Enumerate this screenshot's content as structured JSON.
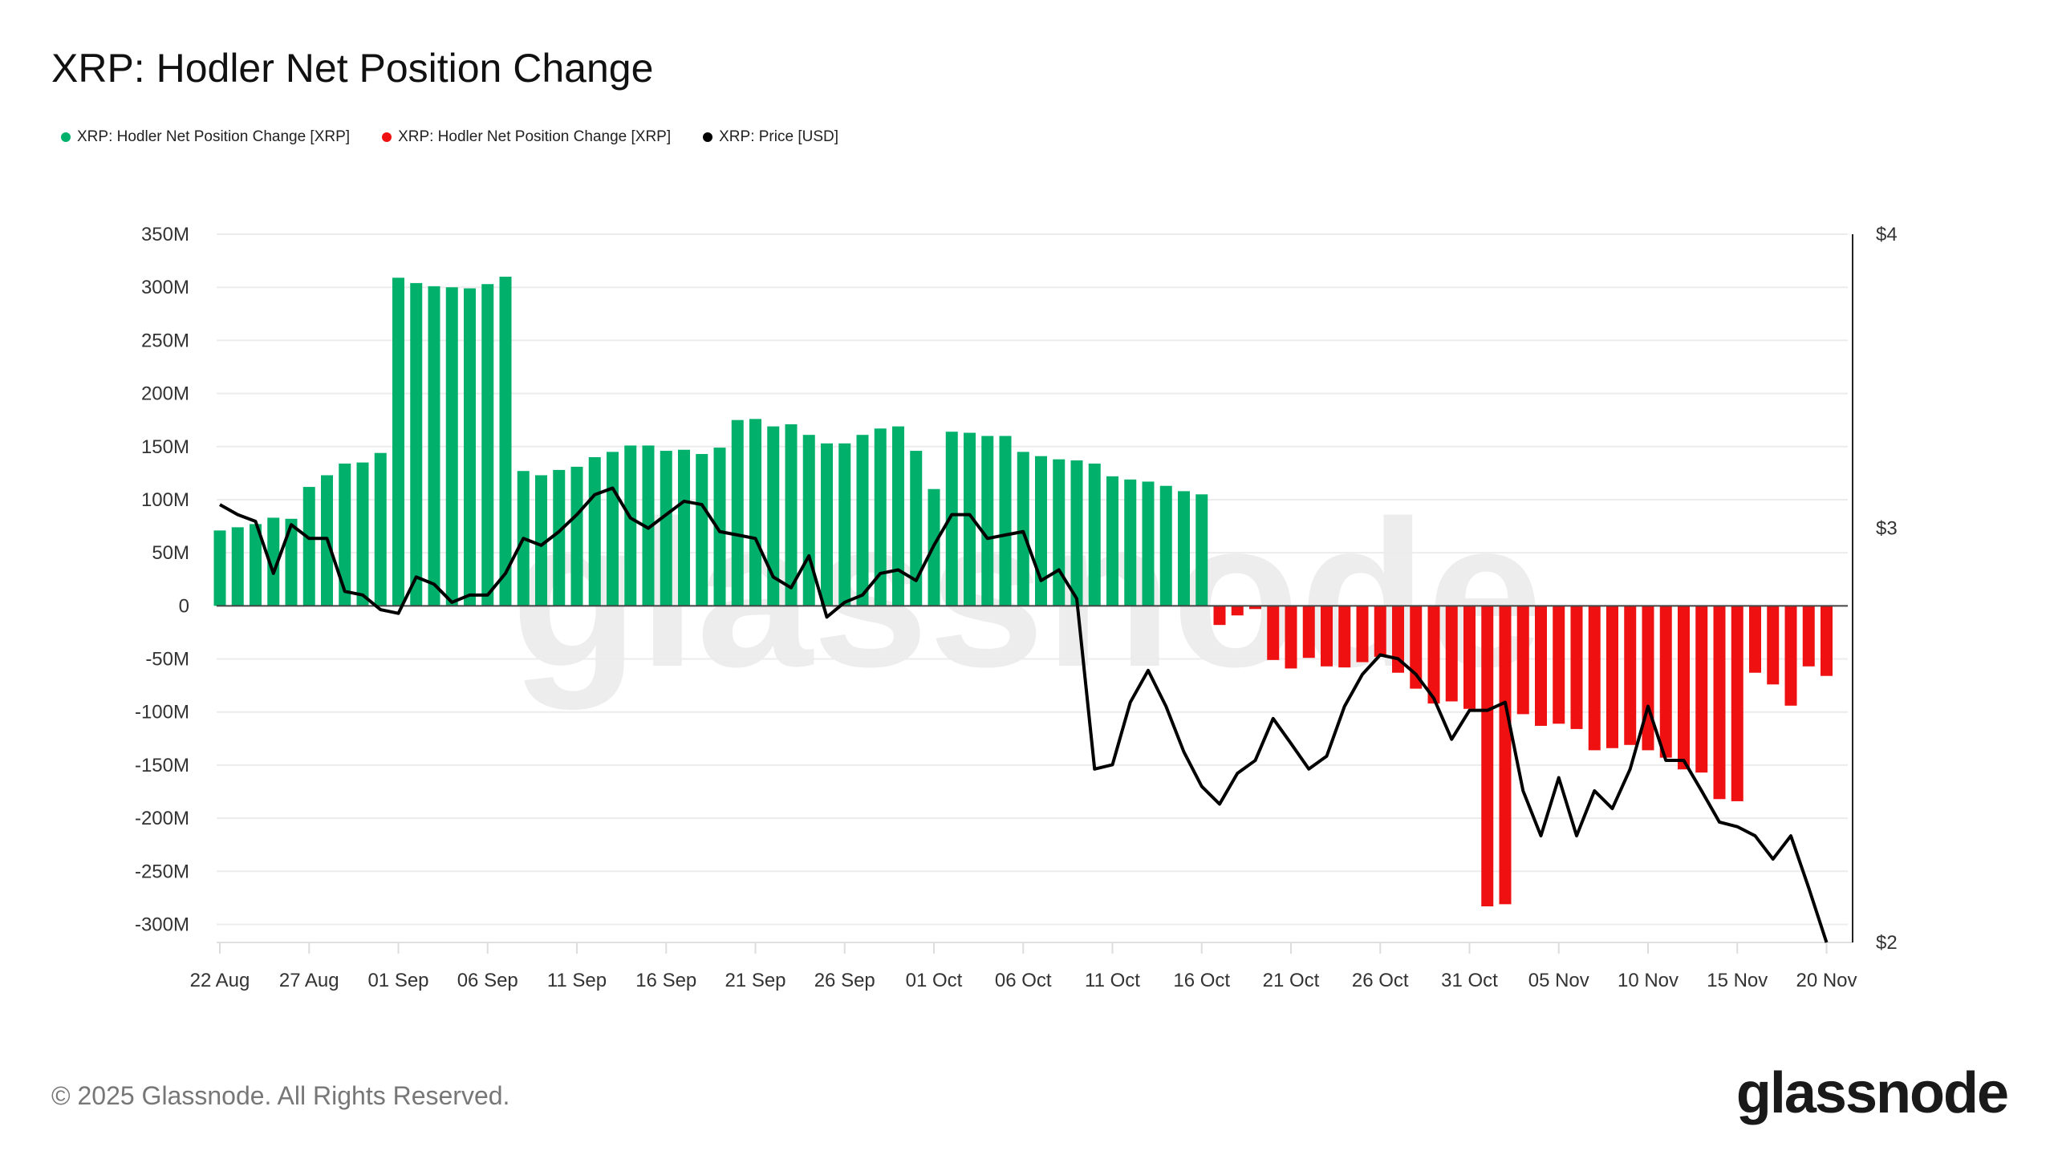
{
  "title": "XRP: Hodler Net Position Change",
  "legend": [
    {
      "label": "XRP: Hodler Net Position Change [XRP]",
      "color": "#00b06b"
    },
    {
      "label": "XRP: Hodler Net Position Change [XRP]",
      "color": "#ef1111"
    },
    {
      "label": "XRP: Price [USD]",
      "color": "#000000"
    }
  ],
  "footer": "© 2025 Glassnode. All Rights Reserved.",
  "logo": "glassnode",
  "watermark": "glassnode",
  "chart_data": {
    "type": "bar",
    "title": "XRP: Hodler Net Position Change",
    "x_start": "2025-08-22",
    "x_end": "2025-11-20",
    "x_tick_labels": [
      "22 Aug",
      "27 Aug",
      "01 Sep",
      "06 Sep",
      "11 Sep",
      "16 Sep",
      "21 Sep",
      "26 Sep",
      "01 Oct",
      "06 Oct",
      "11 Oct",
      "16 Oct",
      "21 Oct",
      "26 Oct",
      "31 Oct",
      "05 Nov",
      "10 Nov",
      "15 Nov",
      "20 Nov"
    ],
    "y_left": {
      "unit": "M XRP",
      "ylim": [
        -317,
        350
      ],
      "tick_labels": [
        "350M",
        "300M",
        "250M",
        "200M",
        "150M",
        "100M",
        "50M",
        "0",
        "-50M",
        "-100M",
        "-150M",
        "-200M",
        "-250M",
        "-300M"
      ],
      "ticks": [
        350,
        300,
        250,
        200,
        150,
        100,
        50,
        0,
        -50,
        -100,
        -150,
        -200,
        -250,
        -300
      ]
    },
    "y_right": {
      "unit": "USD",
      "scale": "log",
      "ylim": [
        2,
        4
      ],
      "tick_labels": [
        "$4",
        "$3",
        "$2"
      ],
      "ticks": [
        4,
        3,
        2
      ]
    },
    "grid": true,
    "legend_position": "top-left",
    "colors": {
      "positive": "#00b06b",
      "negative": "#ef1111",
      "price": "#000000"
    },
    "series": [
      {
        "name": "XRP: Hodler Net Position Change [XRP]",
        "type": "bar",
        "unit": "M",
        "values": [
          71,
          74,
          77,
          83,
          82,
          112,
          123,
          134,
          135,
          144,
          309,
          304,
          301,
          300,
          299,
          303,
          310,
          127,
          123,
          128,
          131,
          140,
          145,
          151,
          151,
          146,
          147,
          143,
          149,
          175,
          176,
          169,
          171,
          161,
          153,
          153,
          161,
          167,
          169,
          146,
          110,
          164,
          163,
          160,
          160,
          145,
          141,
          138,
          137,
          134,
          122,
          119,
          117,
          113,
          108,
          105,
          -18,
          -9,
          -3,
          -51,
          -59,
          -49,
          -57,
          -58,
          -53,
          -48,
          -63,
          -78,
          -92,
          -90,
          -97,
          -283,
          -281,
          -102,
          -113,
          -111,
          -116,
          -136,
          -134,
          -131,
          -136,
          -143,
          -154,
          -157,
          -182,
          -184,
          -63,
          -74,
          -94,
          -57,
          -66
        ]
      },
      {
        "name": "XRP: Price [USD]",
        "type": "line",
        "values": [
          3.07,
          3.04,
          3.02,
          2.87,
          3.01,
          2.97,
          2.97,
          2.82,
          2.81,
          2.77,
          2.76,
          2.86,
          2.84,
          2.79,
          2.81,
          2.81,
          2.87,
          2.97,
          2.95,
          2.99,
          3.04,
          3.1,
          3.12,
          3.03,
          3.0,
          3.04,
          3.08,
          3.07,
          2.99,
          2.98,
          2.97,
          2.86,
          2.83,
          2.92,
          2.75,
          2.79,
          2.81,
          2.87,
          2.88,
          2.85,
          2.95,
          3.04,
          3.04,
          2.97,
          2.98,
          2.99,
          2.85,
          2.88,
          2.8,
          2.37,
          2.38,
          2.53,
          2.61,
          2.52,
          2.41,
          2.33,
          2.29,
          2.36,
          2.39,
          2.49,
          2.43,
          2.37,
          2.4,
          2.52,
          2.6,
          2.65,
          2.64,
          2.6,
          2.54,
          2.44,
          2.51,
          2.51,
          2.53,
          2.32,
          2.22,
          2.35,
          2.22,
          2.32,
          2.28,
          2.37,
          2.52,
          2.39,
          2.39,
          2.32,
          2.25,
          2.24,
          2.22,
          2.17,
          2.22,
          2.11,
          2.0
        ]
      }
    ]
  }
}
